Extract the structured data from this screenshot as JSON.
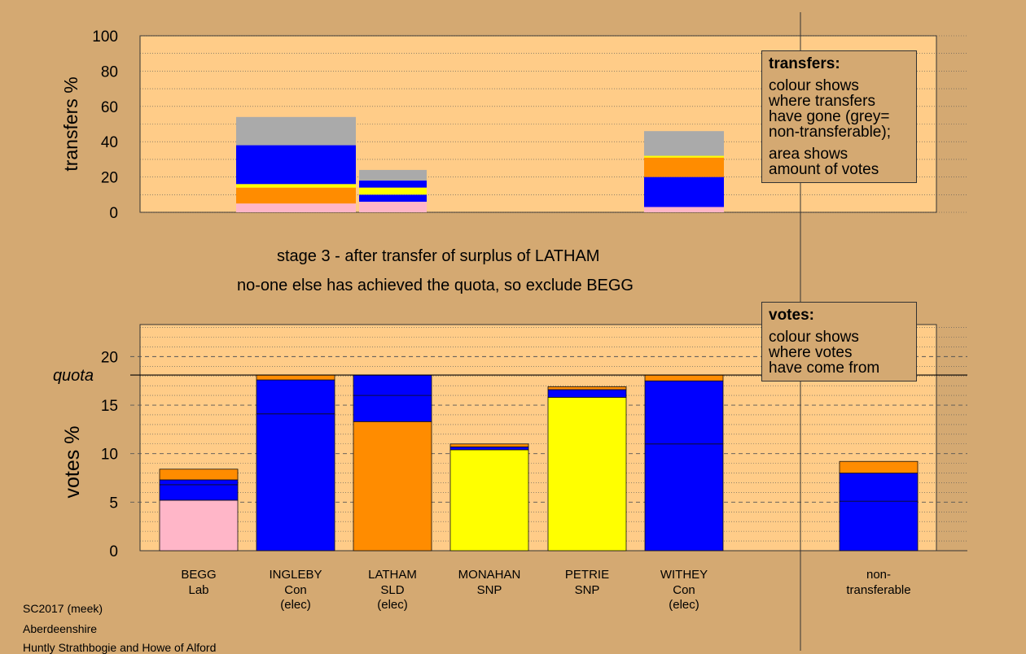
{
  "chart_data": [
    {
      "type": "bar",
      "stacked": true,
      "ylabel": "transfers %",
      "ylim": [
        0,
        100
      ],
      "yticks": [
        0,
        20,
        40,
        60,
        80,
        100
      ],
      "grid": true,
      "columns": [
        {
          "segments": [
            {
              "color": "#FFB6C8",
              "value": 5
            },
            {
              "color": "#FF8C00",
              "value": 9
            },
            {
              "color": "#FFFF00",
              "value": 2
            },
            {
              "color": "#0000FF",
              "value": 22
            },
            {
              "color": "#AAAAAA",
              "value": 16
            }
          ]
        },
        {
          "segments": [
            {
              "color": "#FFB6C8",
              "value": 6
            },
            {
              "color": "#0000FF",
              "value": 4
            },
            {
              "color": "#FFFF00",
              "value": 4
            },
            {
              "color": "#0000FF",
              "value": 4
            },
            {
              "color": "#AAAAAA",
              "value": 6
            }
          ]
        },
        {
          "segments": [
            {
              "color": "#FFB6C8",
              "value": 3
            },
            {
              "color": "#0000FF",
              "value": 17
            },
            {
              "color": "#FF8C00",
              "value": 11
            },
            {
              "color": "#FFFF00",
              "value": 1
            },
            {
              "color": "#AAAAAA",
              "value": 14
            }
          ]
        }
      ]
    },
    {
      "type": "bar",
      "stacked": true,
      "ylabel": "votes %",
      "ylim": [
        0,
        23.3
      ],
      "yticks": [
        0,
        5,
        10,
        15,
        20
      ],
      "quota": 18.1,
      "quota_label": "quota",
      "grid": true,
      "candidates": [
        {
          "name": "BEGG",
          "party": "Lab",
          "status": "",
          "segments": [
            {
              "color": "#FFB6C8",
              "value": 5.2
            },
            {
              "color": "#0000FF",
              "value": 1.6
            },
            {
              "color": "#0000FF",
              "value": 0.5
            },
            {
              "color": "#FF8C00",
              "value": 1.1
            }
          ]
        },
        {
          "name": "INGLEBY",
          "party": "Con",
          "status": "(elec)",
          "segments": [
            {
              "color": "#0000FF",
              "value": 14.1
            },
            {
              "color": "#0000FF",
              "value": 3.5
            },
            {
              "color": "#FF8C00",
              "value": 0.5
            }
          ]
        },
        {
          "name": "LATHAM",
          "party": "SLD",
          "status": "(elec)",
          "segments": [
            {
              "color": "#FF8C00",
              "value": 13.3
            },
            {
              "color": "#0000FF",
              "value": 2.7
            },
            {
              "color": "#0000FF",
              "value": 2.1
            }
          ]
        },
        {
          "name": "MONAHAN",
          "party": "SNP",
          "status": "",
          "segments": [
            {
              "color": "#FFFF00",
              "value": 10.4
            },
            {
              "color": "#0000FF",
              "value": 0.3
            },
            {
              "color": "#FF8C00",
              "value": 0.3
            }
          ]
        },
        {
          "name": "PETRIE",
          "party": "SNP",
          "status": "",
          "segments": [
            {
              "color": "#FFFF00",
              "value": 15.8
            },
            {
              "color": "#0000FF",
              "value": 0.8
            },
            {
              "color": "#FF8C00",
              "value": 0.3
            }
          ]
        },
        {
          "name": "WITHEY",
          "party": "Con",
          "status": "(elec)",
          "segments": [
            {
              "color": "#0000FF",
              "value": 11
            },
            {
              "color": "#0000FF",
              "value": 6.5
            },
            {
              "color": "#FF8C00",
              "value": 0.6
            }
          ]
        },
        {
          "name": "non-",
          "party": "transferable",
          "status": "",
          "segments": [
            {
              "color": "#0000FF",
              "value": 5.1
            },
            {
              "color": "#0000FF",
              "value": 2.9
            },
            {
              "color": "#FF8C00",
              "value": 1.2
            }
          ]
        }
      ]
    }
  ],
  "stage_title": "stage 3 - after transfer of surplus of LATHAM",
  "stage_note": "no-one else has achieved the quota, so exclude BEGG",
  "legend_transfers": {
    "title": "transfers:",
    "line1": "colour shows",
    "line2": "where transfers",
    "line3": "have gone (grey=",
    "line4": "non-transferable);",
    "line5": "area shows",
    "line6": "amount of votes"
  },
  "legend_votes": {
    "title": "votes:",
    "line1": "colour shows",
    "line2": "where votes",
    "line3": "have come from"
  },
  "footer": {
    "election": "SC2017 (meek)",
    "council": "Aberdeenshire",
    "ward": "Huntly Strathbogie and Howe of Alford"
  },
  "colors": {
    "background": "#D4A972",
    "plot_area": "#FFCC88",
    "grey": "#AAAAAA",
    "pink": "#FFB6C8",
    "orange": "#FF8C00",
    "yellow": "#FFFF00",
    "blue": "#0000FF"
  }
}
